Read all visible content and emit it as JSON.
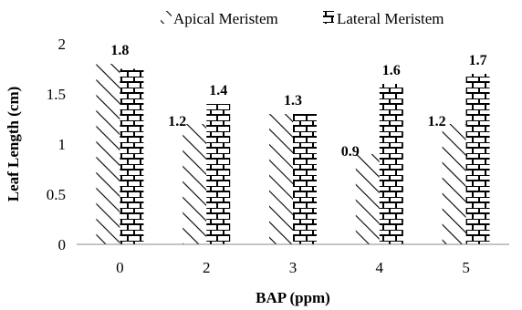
{
  "chart_data": {
    "type": "bar",
    "categories": [
      "0",
      "2",
      "3",
      "4",
      "5"
    ],
    "series": [
      {
        "name": "Apical Meristem",
        "values": [
          1.8,
          1.2,
          1.3,
          0.9,
          1.2
        ],
        "pattern": "diagonal-hatch"
      },
      {
        "name": "Lateral Meristem",
        "values": [
          1.75,
          1.4,
          1.3,
          1.6,
          1.7
        ],
        "pattern": "brick"
      }
    ],
    "data_labels": [
      {
        "category": "0",
        "text": "1.8"
      },
      {
        "category": "2",
        "text": "1.2"
      },
      {
        "category": "2",
        "text": "1.4"
      },
      {
        "category": "3",
        "text": "1.3"
      },
      {
        "category": "4",
        "text": "0.9"
      },
      {
        "category": "4",
        "text": "1.6"
      },
      {
        "category": "5",
        "text": "1.2"
      },
      {
        "category": "5",
        "text": "1.7"
      }
    ],
    "title": "",
    "xlabel": "BAP (ppm)",
    "ylabel": "Leaf Length (cm)",
    "ylim": [
      0,
      2
    ],
    "yticks": [
      "0",
      "0.5",
      "1",
      "1.5",
      "2"
    ],
    "grid": false,
    "legend_position": "top"
  }
}
